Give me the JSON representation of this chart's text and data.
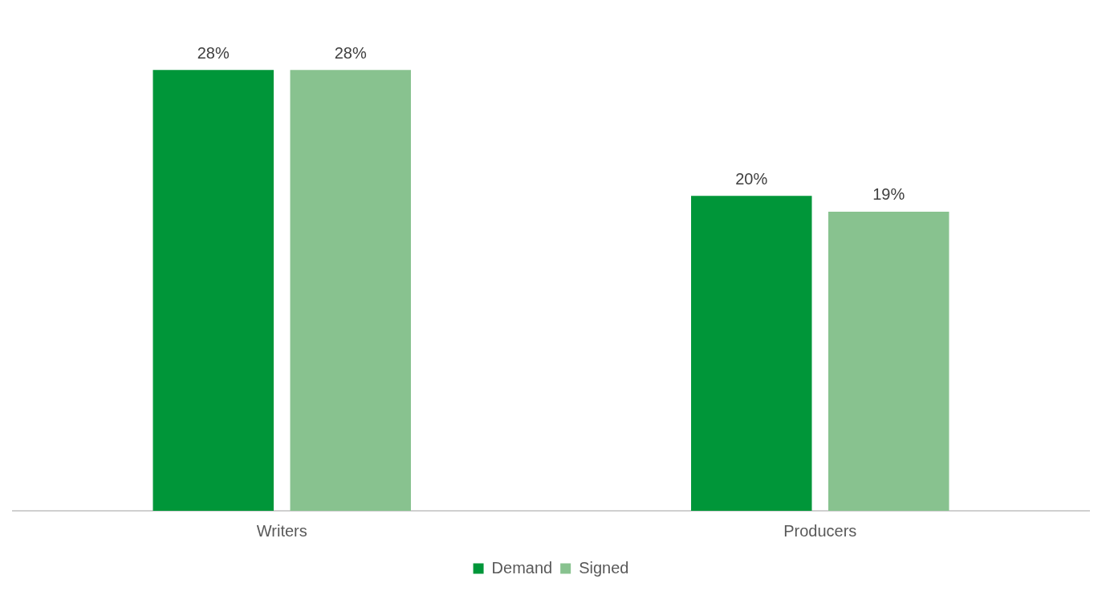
{
  "chart_data": {
    "type": "bar",
    "categories": [
      "Writers",
      "Producers"
    ],
    "series": [
      {
        "name": "Demand",
        "color": "#009639",
        "values": [
          28,
          20
        ],
        "value_labels": [
          "28%",
          "20%"
        ]
      },
      {
        "name": "Signed",
        "color": "#88c28f",
        "values": [
          28,
          19
        ],
        "value_labels": [
          "28%",
          "19%"
        ]
      }
    ],
    "legend": "bottom",
    "grid": false
  }
}
